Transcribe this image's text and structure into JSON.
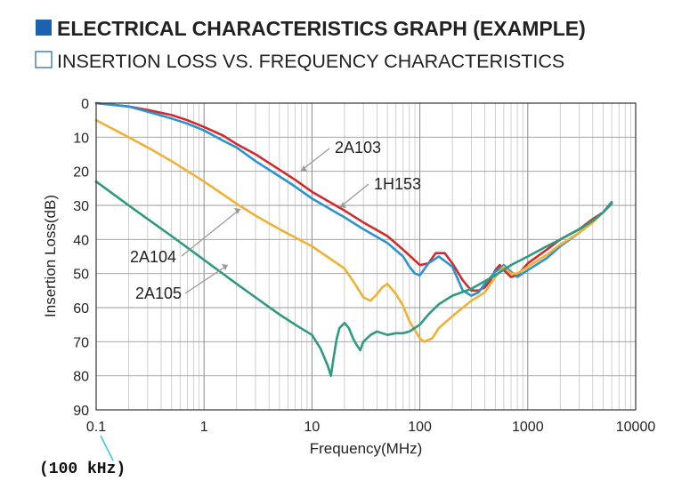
{
  "header": {
    "title": "ELECTRICAL CHARACTERISTICS GRAPH (EXAMPLE)",
    "subtitle": "INSERTION LOSS VS. FREQUENCY CHARACTERISTICS",
    "title_marker_color": "#1a63b0"
  },
  "annotation": {
    "x_origin_note": "(100 kHz)",
    "note_color": "#3ec6e6"
  },
  "chart_data": {
    "type": "line",
    "xlabel": "Frequency(MHz)",
    "ylabel": "Insertion Loss(dB)",
    "x_scale": "log",
    "xlim": [
      0.1,
      10000
    ],
    "ylim": [
      0,
      90
    ],
    "y_inverted": true,
    "grid": true,
    "x_ticks": [
      "0.1",
      "1",
      "10",
      "100",
      "1000",
      "10000"
    ],
    "y_ticks": [
      "0",
      "10",
      "20",
      "30",
      "40",
      "50",
      "60",
      "70",
      "80",
      "90"
    ],
    "series": [
      {
        "name": "2A103",
        "color": "#d42a2a",
        "x": [
          0.1,
          0.2,
          0.3,
          0.5,
          0.7,
          1,
          1.5,
          2,
          3,
          5,
          7,
          10,
          20,
          30,
          50,
          70,
          100,
          120,
          140,
          170,
          200,
          250,
          300,
          350,
          400,
          450,
          500,
          550,
          600,
          700,
          800,
          1000,
          1500,
          2000,
          3000,
          4000,
          5000,
          6000
        ],
        "values": [
          0,
          1,
          2,
          3.5,
          5,
          7,
          9.5,
          12,
          15,
          19.5,
          22.5,
          26,
          31.5,
          35,
          39,
          43,
          47.5,
          47,
          44,
          44,
          47,
          52,
          55,
          55,
          54,
          52,
          49,
          47.5,
          49,
          51,
          50.5,
          47,
          43,
          40,
          37,
          34,
          32,
          29
        ]
      },
      {
        "name": "1H153",
        "color": "#2b93d1",
        "x": [
          0.1,
          0.2,
          0.3,
          0.5,
          0.7,
          1,
          1.5,
          2,
          3,
          5,
          7,
          10,
          20,
          30,
          50,
          70,
          80,
          90,
          100,
          120,
          150,
          200,
          250,
          300,
          350,
          400,
          500,
          600,
          700,
          800,
          1000,
          1500,
          2000,
          3000,
          4000,
          5000,
          6000
        ],
        "values": [
          0,
          1,
          2.5,
          4.5,
          6,
          8,
          11,
          13,
          17,
          21.5,
          24.5,
          28,
          33.5,
          37,
          41,
          45,
          48,
          50,
          50.5,
          47,
          45,
          48,
          55,
          56.5,
          55.5,
          53,
          49.5,
          47.5,
          49.5,
          51,
          49,
          45.5,
          42,
          38,
          34.5,
          32,
          29
        ]
      },
      {
        "name": "2A104",
        "color": "#f0b134",
        "x": [
          0.1,
          0.2,
          0.3,
          0.5,
          1,
          2,
          3,
          5,
          10,
          20,
          25,
          30,
          35,
          40,
          45,
          50,
          60,
          70,
          80,
          100,
          110,
          130,
          150,
          200,
          300,
          400,
          500,
          600,
          700,
          800,
          1000,
          1500,
          2000,
          3000,
          4000,
          5000,
          6000
        ],
        "values": [
          5,
          10,
          13,
          17,
          23,
          29.5,
          33,
          37,
          42,
          48.5,
          53,
          57,
          58,
          56,
          54,
          53,
          56,
          59.5,
          64,
          69,
          70,
          69,
          66,
          62.5,
          58,
          55.5,
          51,
          48,
          50,
          50,
          48,
          44.5,
          41.5,
          38,
          35,
          32,
          29.5
        ]
      },
      {
        "name": "2A105",
        "color": "#2f9981",
        "x": [
          0.1,
          0.2,
          0.3,
          0.5,
          1,
          2,
          3,
          5,
          7,
          10,
          12,
          14,
          15,
          16,
          17,
          18,
          20,
          22,
          24,
          26,
          28,
          30,
          35,
          40,
          50,
          60,
          70,
          80,
          100,
          120,
          150,
          200,
          300,
          500,
          700,
          1000,
          1500,
          2000,
          3000,
          4000,
          5000,
          6000
        ],
        "values": [
          23,
          30,
          34,
          39,
          46,
          53,
          57,
          62,
          65,
          68,
          72,
          77,
          80,
          74,
          69,
          66,
          64.5,
          66,
          69,
          71,
          72.5,
          70,
          68,
          67,
          68,
          67.5,
          67.5,
          67,
          65,
          62,
          59,
          56.5,
          54.5,
          50.5,
          47.5,
          45,
          42,
          40,
          37,
          34.5,
          32,
          29.5
        ]
      }
    ],
    "labels": [
      {
        "text": "2A103",
        "series": "2A103"
      },
      {
        "text": "1H153",
        "series": "1H153"
      },
      {
        "text": "2A104",
        "series": "2A104"
      },
      {
        "text": "2A105",
        "series": "2A105"
      }
    ]
  }
}
